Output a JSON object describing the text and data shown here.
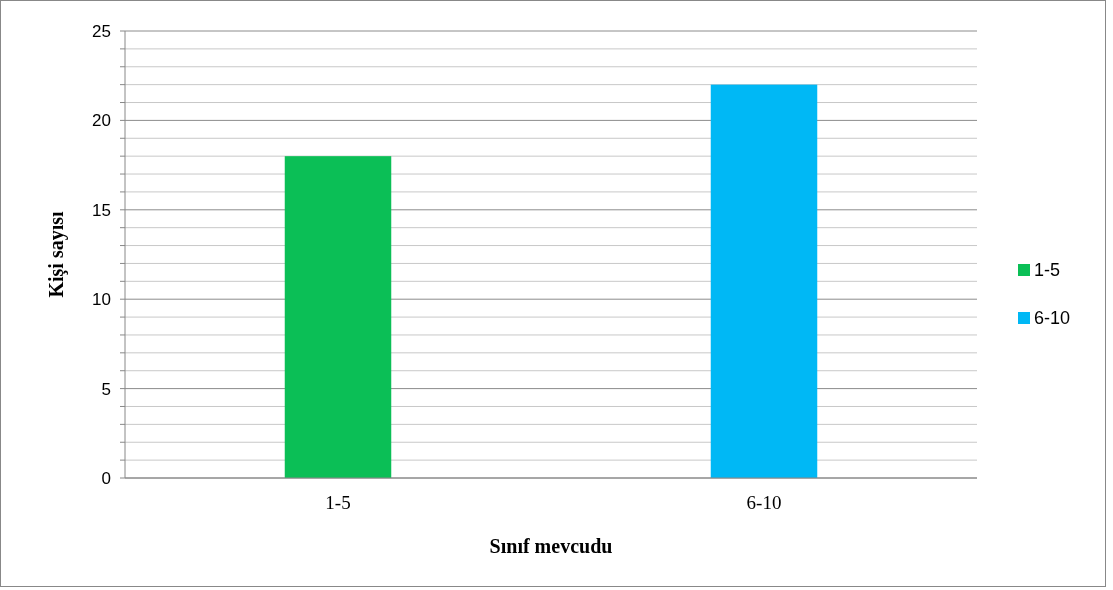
{
  "chart_data": {
    "type": "bar",
    "xlabel": "Sınıf mevcudu",
    "ylabel": "Kişi sayısı",
    "categories": [
      "1-5",
      "6-10"
    ],
    "series": [
      {
        "name": "1-5",
        "color": "#0bbf56",
        "values": [
          18,
          null
        ]
      },
      {
        "name": "6-10",
        "color": "#00b8f5",
        "values": [
          null,
          22
        ]
      }
    ],
    "ylim": [
      0,
      25
    ],
    "yticks": [
      0,
      {
        "value": 1,
        "label": null
      },
      {
        "value": 2,
        "label": null
      },
      {
        "value": 3,
        "label": null
      },
      {
        "value": 4,
        "label": null
      },
      5,
      {
        "value": 6,
        "label": null
      },
      {
        "value": 7,
        "label": null
      },
      {
        "value": 8,
        "label": null
      },
      {
        "value": 9,
        "label": null
      },
      10,
      {
        "value": 11,
        "label": null
      },
      {
        "value": 12,
        "label": null
      },
      {
        "value": 13,
        "label": null
      },
      {
        "value": 14,
        "label": null
      },
      15,
      {
        "value": 16,
        "label": null
      },
      {
        "value": 17,
        "label": null
      },
      {
        "value": 18,
        "label": null
      },
      {
        "value": 19,
        "label": null
      },
      20,
      {
        "value": 21,
        "label": null
      },
      {
        "value": 22,
        "label": null
      },
      {
        "value": 23,
        "label": null
      },
      {
        "value": 24,
        "label": null
      },
      25
    ],
    "grid": true,
    "legend": "right"
  }
}
